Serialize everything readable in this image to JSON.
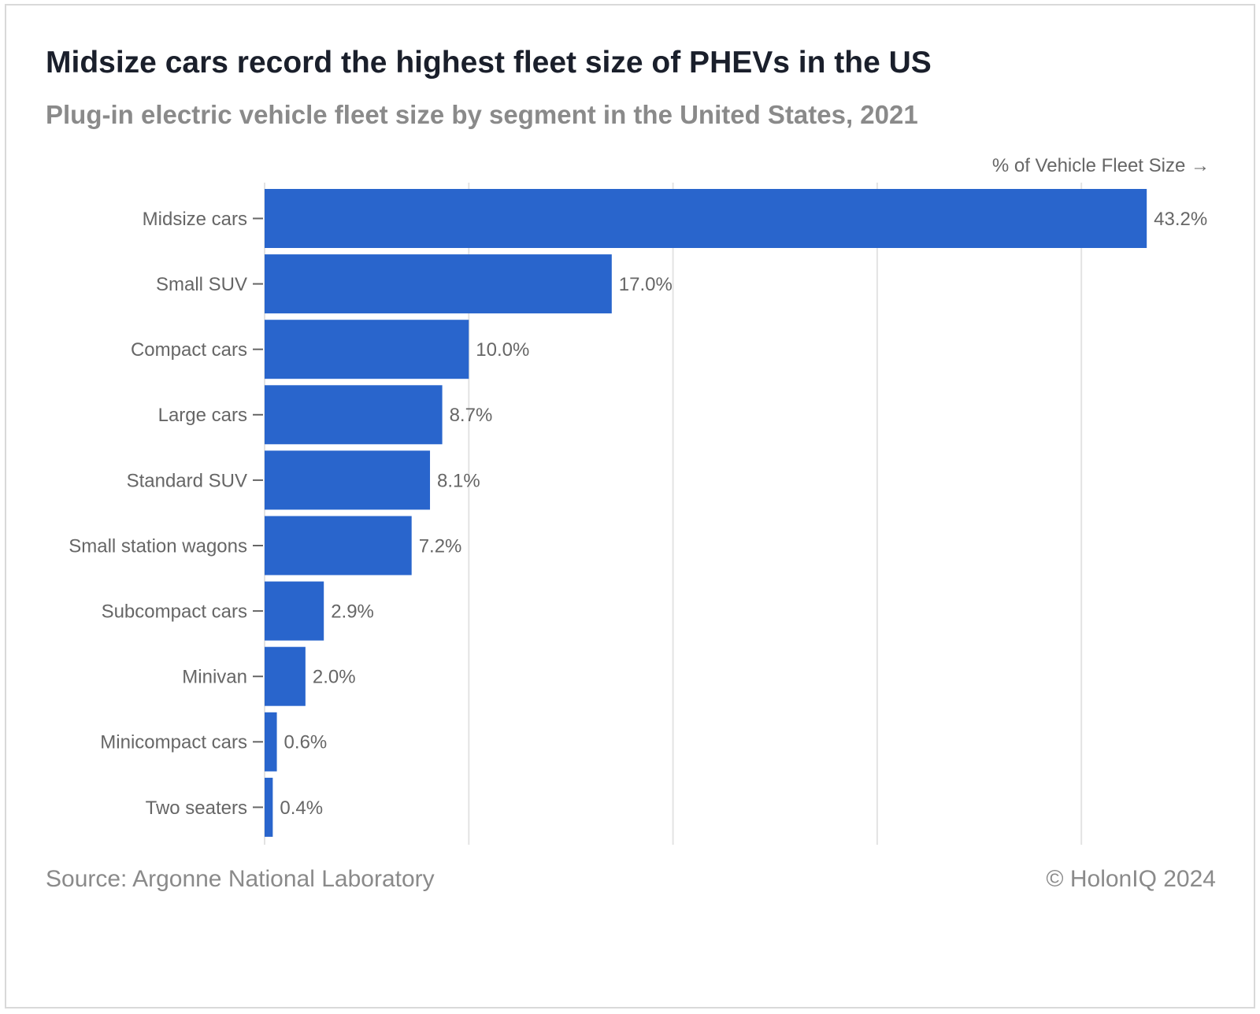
{
  "header": {
    "title": "Midsize cars record the highest fleet size of PHEVs in the US",
    "subtitle": "Plug-in electric vehicle fleet size by segment in the United States, 2021"
  },
  "footer": {
    "source": "Source: Argonne National Laboratory",
    "copyright": "© HolonIQ 2024"
  },
  "colors": {
    "bar": "#2965cc",
    "grid": "#e3e3e3",
    "label": "#666666"
  },
  "chart_data": {
    "type": "bar",
    "orientation": "horizontal",
    "title": "Midsize cars record the highest fleet size of PHEVs in the US",
    "subtitle": "Plug-in electric vehicle fleet size by segment in the United States, 2021",
    "xlabel": "% of Vehicle Fleet Size →",
    "ylabel": "",
    "xlim": [
      0,
      45
    ],
    "grid": true,
    "categories": [
      "Midsize cars",
      "Small SUV",
      "Compact cars",
      "Large cars",
      "Standard SUV",
      "Small station wagons",
      "Subcompact cars",
      "Minivan",
      "Minicompact cars",
      "Two seaters"
    ],
    "values": [
      43.2,
      17.0,
      10.0,
      8.7,
      8.1,
      7.2,
      2.9,
      2.0,
      0.6,
      0.4
    ],
    "value_labels": [
      "43.2%",
      "17.0%",
      "10.0%",
      "8.7%",
      "8.1%",
      "7.2%",
      "2.9%",
      "2.0%",
      "0.6%",
      "0.4%"
    ]
  }
}
